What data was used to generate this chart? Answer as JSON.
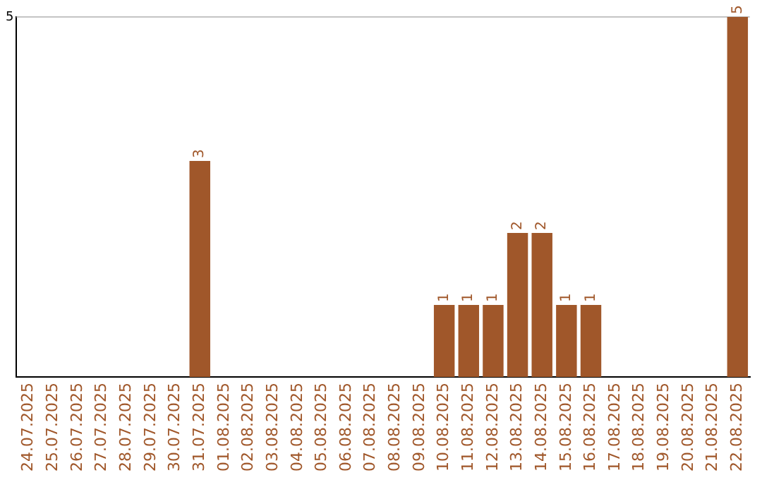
{
  "chart_data": {
    "type": "bar",
    "categories": [
      "24.07.2025",
      "25.07.2025",
      "26.07.2025",
      "27.07.2025",
      "28.07.2025",
      "29.07.2025",
      "30.07.2025",
      "31.07.2025",
      "01.08.2025",
      "02.08.2025",
      "03.08.2025",
      "04.08.2025",
      "05.08.2025",
      "06.08.2025",
      "07.08.2025",
      "08.08.2025",
      "09.08.2025",
      "10.08.2025",
      "11.08.2025",
      "12.08.2025",
      "13.08.2025",
      "14.08.2025",
      "15.08.2025",
      "16.08.2025",
      "17.08.2025",
      "18.08.2025",
      "19.08.2025",
      "20.08.2025",
      "21.08.2025",
      "22.08.2025"
    ],
    "values": [
      0,
      0,
      0,
      0,
      0,
      0,
      0,
      3,
      0,
      0,
      0,
      0,
      0,
      0,
      0,
      0,
      0,
      1,
      1,
      1,
      2,
      2,
      1,
      1,
      0,
      0,
      0,
      0,
      0,
      5
    ],
    "value_labels": [
      null,
      null,
      null,
      null,
      null,
      null,
      null,
      "3",
      null,
      null,
      null,
      null,
      null,
      null,
      null,
      null,
      null,
      "1",
      "1",
      "1",
      "2",
      "2",
      "1",
      "1",
      null,
      null,
      null,
      null,
      null,
      "5"
    ],
    "color": "#a0572a",
    "ylim": [
      0,
      5
    ],
    "yticks": [
      5
    ],
    "ref_lines": [
      {
        "axis": "y",
        "value": 5,
        "color": "#c4c4c4"
      }
    ],
    "legend": false
  }
}
